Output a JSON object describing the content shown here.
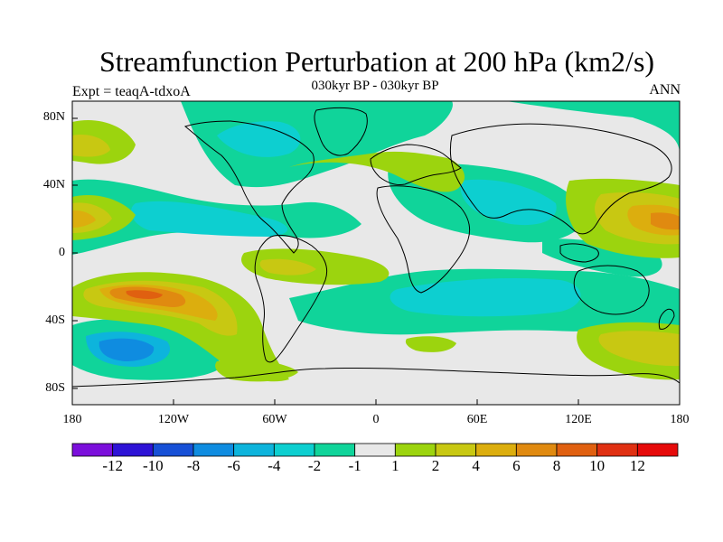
{
  "title": "Streamfunction Perturbation at 200 hPa (km2/s)",
  "subtitle": "030kyr BP - 030kyr BP",
  "left_string": "Expt = teaqA-tdxoA",
  "right_string": "ANN",
  "lat_labels": [
    "80N",
    "40N",
    "0",
    "40S",
    "80S"
  ],
  "lon_labels": [
    "180",
    "120W",
    "60W",
    "0",
    "60E",
    "120E",
    "180"
  ],
  "colorbar": {
    "labels": [
      "-12",
      "-10",
      "-8",
      "-6",
      "-4",
      "-2",
      "-1",
      "1",
      "2",
      "4",
      "6",
      "8",
      "10",
      "12"
    ],
    "colors": [
      "#7b0fdb",
      "#2e13d6",
      "#1750d6",
      "#0f8ce0",
      "#0db4dc",
      "#0dcfd0",
      "#10d49a",
      "#e8e8e8",
      "#9cd40e",
      "#c8c812",
      "#dcae0e",
      "#e08a10",
      "#e06010",
      "#e03012",
      "#e60a0a"
    ]
  },
  "colors": {
    "land_outline": "#000000",
    "background": "#e8e8e8"
  }
}
